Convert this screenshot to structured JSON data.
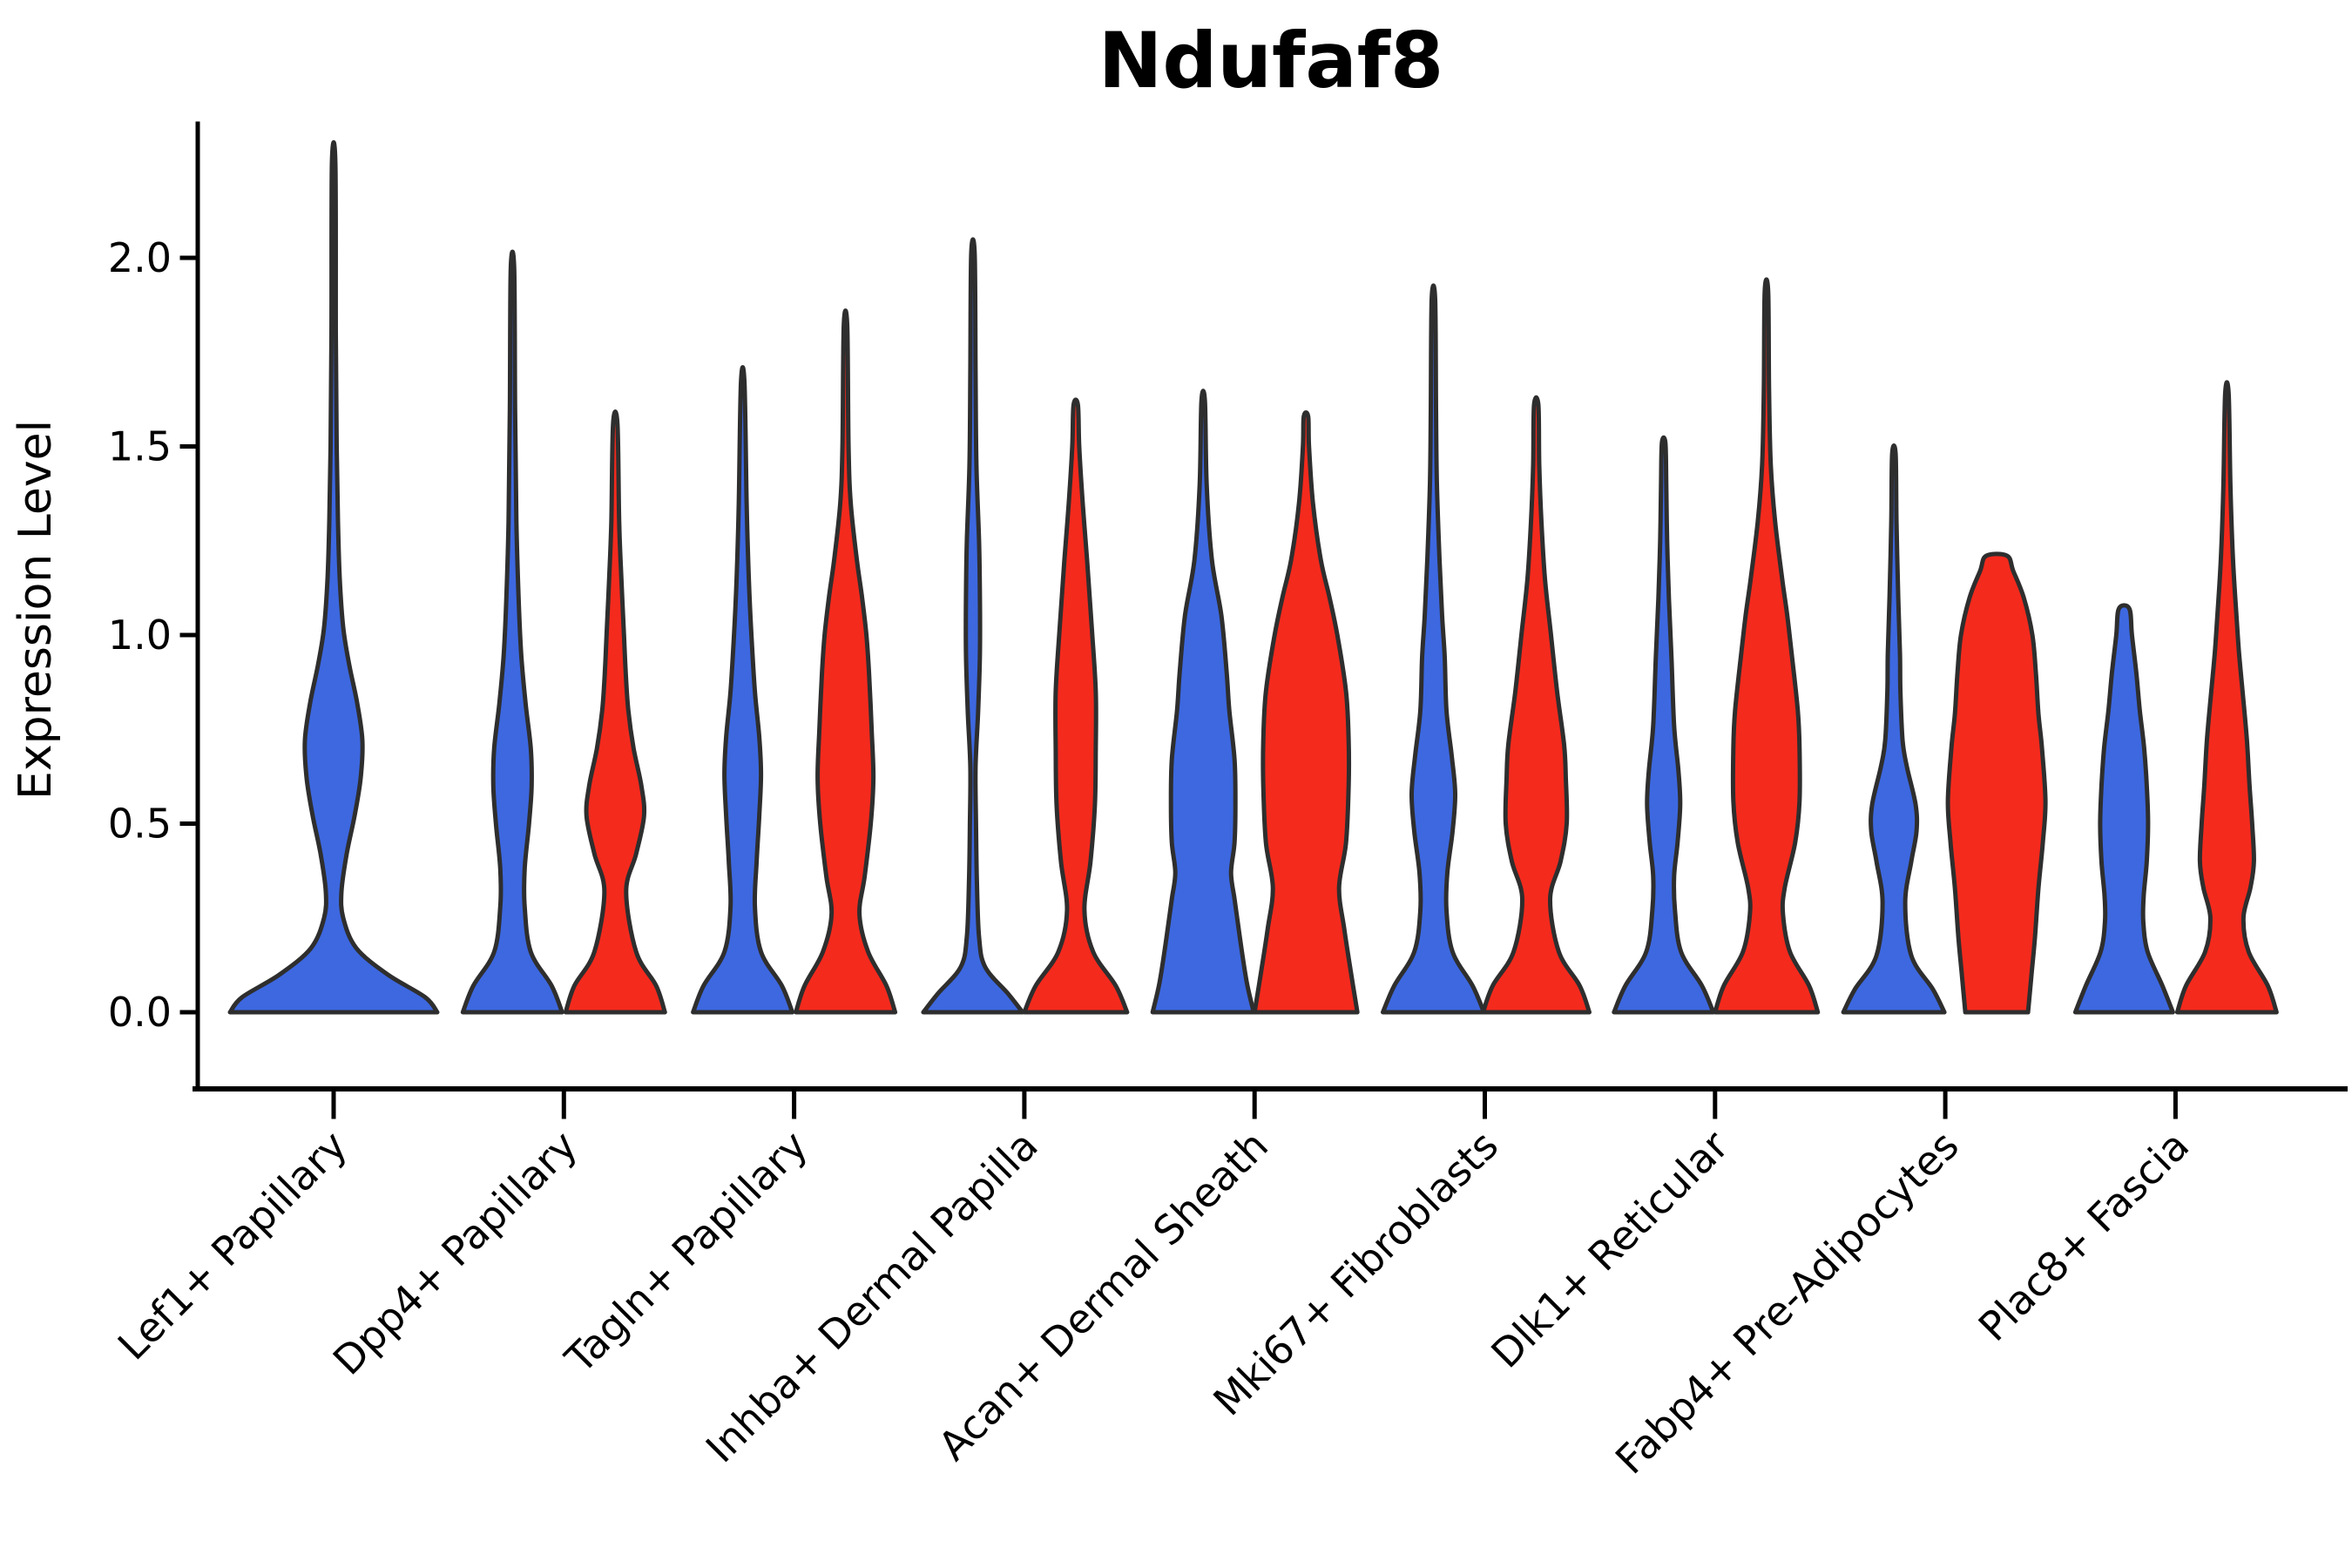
{
  "title": "Ndufaf8",
  "axes": {
    "y_label": "Expression Level",
    "y_tick_labels": [
      "0.0",
      "0.5",
      "1.0",
      "1.5",
      "2.0"
    ],
    "x_tick_rotation_deg": 45
  },
  "colors": {
    "blue": "#3D68E0",
    "red": "#F42A1D",
    "outline": "#2E2E2E",
    "axis": "#000000",
    "background": "#FFFFFF"
  },
  "chart_data": {
    "type": "violin",
    "title": "Ndufaf8",
    "xlabel": "",
    "ylabel": "Expression Level",
    "ylim": [
      -0.11,
      2.36
    ],
    "y_ticks": [
      0,
      0.5,
      1.0,
      1.5,
      2.0
    ],
    "grid": false,
    "legend_position": "none",
    "split_violins": true,
    "categories": [
      "Lef1+ Papillary",
      "Dpp4+ Papillary",
      "Tagln+ Papillary",
      "Inhba+ Dermal Papilla",
      "Acan+ Dermal Sheath",
      "Mki67+ Fibroblasts",
      "Dlk1+ Reticular",
      "Fabp4+ Pre-Adipocytes",
      "Plac8+ Fascia"
    ],
    "series": [
      {
        "name": "blue",
        "color": "#3D68E0"
      },
      {
        "name": "red",
        "color": "#F42A1D"
      }
    ],
    "notes": "Density profiles read from plot: profile entries are [expression_value, half_width_px at 2700x1800 scale]. Lef1+ Papillary shows a single full-width blue violin; every other category has a blue (left) and red (right) violin. Fabp4+ red and Plac8+ blue violins have truncated flat tops.",
    "violins": [
      {
        "category": "Lef1+ Papillary",
        "series": "blue",
        "single": true,
        "max": 2.25,
        "profile": [
          [
            0,
            119
          ],
          [
            0.04,
            105
          ],
          [
            0.1,
            62
          ],
          [
            0.17,
            26
          ],
          [
            0.25,
            11
          ],
          [
            0.32,
            9
          ],
          [
            0.42,
            15
          ],
          [
            0.52,
            24
          ],
          [
            0.62,
            31
          ],
          [
            0.72,
            33
          ],
          [
            0.82,
            27
          ],
          [
            0.92,
            18
          ],
          [
            1.02,
            11
          ],
          [
            1.15,
            7
          ],
          [
            1.3,
            5
          ],
          [
            1.5,
            3.5
          ],
          [
            1.8,
            2.5
          ],
          [
            2.25,
            2
          ]
        ]
      },
      {
        "category": "Dpp4+ Papillary",
        "series": "blue",
        "max": 1.97,
        "profile": [
          [
            0,
            57
          ],
          [
            0.07,
            45
          ],
          [
            0.16,
            21
          ],
          [
            0.28,
            14
          ],
          [
            0.38,
            14
          ],
          [
            0.5,
            19
          ],
          [
            0.6,
            22
          ],
          [
            0.7,
            21
          ],
          [
            0.82,
            15
          ],
          [
            0.95,
            10
          ],
          [
            1.1,
            7
          ],
          [
            1.3,
            4.5
          ],
          [
            1.6,
            3
          ],
          [
            1.97,
            2
          ]
        ]
      },
      {
        "category": "Dpp4+ Papillary",
        "series": "red",
        "max": 1.56,
        "profile": [
          [
            0,
            57
          ],
          [
            0.07,
            47
          ],
          [
            0.16,
            24
          ],
          [
            0.32,
            12.5
          ],
          [
            0.42,
            24
          ],
          [
            0.52,
            33
          ],
          [
            0.6,
            30
          ],
          [
            0.7,
            21
          ],
          [
            0.8,
            15
          ],
          [
            0.9,
            12
          ],
          [
            1.0,
            10
          ],
          [
            1.15,
            7
          ],
          [
            1.3,
            4.5
          ],
          [
            1.56,
            2.5
          ]
        ]
      },
      {
        "category": "Tagln+ Papillary",
        "series": "blue",
        "max": 1.67,
        "profile": [
          [
            0,
            57
          ],
          [
            0.07,
            45
          ],
          [
            0.16,
            21
          ],
          [
            0.28,
            14
          ],
          [
            0.4,
            16
          ],
          [
            0.52,
            19
          ],
          [
            0.63,
            21
          ],
          [
            0.73,
            19
          ],
          [
            0.85,
            14
          ],
          [
            1.0,
            10
          ],
          [
            1.15,
            7
          ],
          [
            1.35,
            4.5
          ],
          [
            1.67,
            2
          ]
        ]
      },
      {
        "category": "Tagln+ Papillary",
        "series": "red",
        "max": 1.82,
        "profile": [
          [
            0,
            57
          ],
          [
            0.07,
            47
          ],
          [
            0.16,
            26
          ],
          [
            0.26,
            16
          ],
          [
            0.36,
            22
          ],
          [
            0.5,
            29
          ],
          [
            0.62,
            32
          ],
          [
            0.75,
            30
          ],
          [
            0.9,
            27
          ],
          [
            1.0,
            24
          ],
          [
            1.1,
            19
          ],
          [
            1.2,
            13
          ],
          [
            1.35,
            6
          ],
          [
            1.5,
            3.5
          ],
          [
            1.82,
            2
          ]
        ]
      },
      {
        "category": "Inhba+ Dermal Papilla",
        "series": "blue",
        "max": 2.01,
        "profile": [
          [
            0,
            57
          ],
          [
            0.05,
            40
          ],
          [
            0.12,
            14
          ],
          [
            0.2,
            7
          ],
          [
            0.35,
            4.5
          ],
          [
            0.5,
            3.5
          ],
          [
            0.65,
            3
          ],
          [
            0.8,
            6
          ],
          [
            0.95,
            8
          ],
          [
            1.1,
            8
          ],
          [
            1.25,
            7
          ],
          [
            1.45,
            4
          ],
          [
            1.7,
            3
          ],
          [
            2.01,
            2
          ]
        ]
      },
      {
        "category": "Inhba+ Dermal Papilla",
        "series": "red",
        "max": 1.61,
        "profile": [
          [
            0,
            59
          ],
          [
            0.07,
            46
          ],
          [
            0.16,
            20
          ],
          [
            0.27,
            10
          ],
          [
            0.4,
            17
          ],
          [
            0.55,
            22
          ],
          [
            0.7,
            23
          ],
          [
            0.85,
            23
          ],
          [
            1.0,
            19
          ],
          [
            1.1,
            16
          ],
          [
            1.2,
            13
          ],
          [
            1.35,
            8
          ],
          [
            1.5,
            4
          ],
          [
            1.61,
            2.5
          ]
        ]
      },
      {
        "category": "Acan+ Dermal Sheath",
        "series": "blue",
        "max": 1.62,
        "profile": [
          [
            0,
            58
          ],
          [
            0.08,
            50
          ],
          [
            0.2,
            42
          ],
          [
            0.3,
            36
          ],
          [
            0.37,
            32
          ],
          [
            0.45,
            36
          ],
          [
            0.55,
            37
          ],
          [
            0.67,
            36
          ],
          [
            0.8,
            30
          ],
          [
            0.9,
            27
          ],
          [
            1.05,
            21
          ],
          [
            1.2,
            10
          ],
          [
            1.4,
            4
          ],
          [
            1.62,
            2
          ]
        ]
      },
      {
        "category": "Acan+ Dermal Sheath",
        "series": "red",
        "max": 1.58,
        "profile": [
          [
            0,
            59
          ],
          [
            0.1,
            52
          ],
          [
            0.22,
            44
          ],
          [
            0.33,
            38
          ],
          [
            0.45,
            46
          ],
          [
            0.6,
            49
          ],
          [
            0.72,
            49
          ],
          [
            0.85,
            46
          ],
          [
            1.0,
            36
          ],
          [
            1.1,
            27
          ],
          [
            1.2,
            17
          ],
          [
            1.35,
            8
          ],
          [
            1.5,
            3.5
          ],
          [
            1.58,
            2.5
          ]
        ]
      },
      {
        "category": "Mki67+ Fibroblasts",
        "series": "blue",
        "max": 1.89,
        "profile": [
          [
            0,
            58
          ],
          [
            0.07,
            45
          ],
          [
            0.16,
            22
          ],
          [
            0.27,
            15
          ],
          [
            0.37,
            16
          ],
          [
            0.48,
            22
          ],
          [
            0.58,
            25
          ],
          [
            0.68,
            21
          ],
          [
            0.8,
            15
          ],
          [
            0.94,
            13
          ],
          [
            1.05,
            10
          ],
          [
            1.2,
            7
          ],
          [
            1.4,
            4
          ],
          [
            1.6,
            3
          ],
          [
            1.89,
            2
          ]
        ]
      },
      {
        "category": "Mki67+ Fibroblasts",
        "series": "red",
        "max": 1.61,
        "profile": [
          [
            0,
            61
          ],
          [
            0.07,
            50
          ],
          [
            0.16,
            26
          ],
          [
            0.3,
            16
          ],
          [
            0.4,
            28
          ],
          [
            0.5,
            35
          ],
          [
            0.62,
            34
          ],
          [
            0.71,
            32
          ],
          [
            0.85,
            24
          ],
          [
            1.0,
            17
          ],
          [
            1.15,
            10
          ],
          [
            1.3,
            6
          ],
          [
            1.45,
            3.5
          ],
          [
            1.61,
            2.5
          ]
        ]
      },
      {
        "category": "Dlk1+ Reticular",
        "series": "blue",
        "max": 1.51,
        "profile": [
          [
            0,
            57
          ],
          [
            0.07,
            44
          ],
          [
            0.16,
            20
          ],
          [
            0.27,
            13
          ],
          [
            0.36,
            12
          ],
          [
            0.45,
            16
          ],
          [
            0.55,
            19
          ],
          [
            0.64,
            17
          ],
          [
            0.76,
            12
          ],
          [
            0.94,
            9
          ],
          [
            1.1,
            6
          ],
          [
            1.25,
            4
          ],
          [
            1.4,
            3
          ],
          [
            1.51,
            2
          ]
        ]
      },
      {
        "category": "Dlk1+ Reticular",
        "series": "red",
        "max": 1.91,
        "profile": [
          [
            0,
            59
          ],
          [
            0.07,
            49
          ],
          [
            0.16,
            27
          ],
          [
            0.26,
            19
          ],
          [
            0.33,
            21
          ],
          [
            0.45,
            33
          ],
          [
            0.56,
            38
          ],
          [
            0.7,
            38
          ],
          [
            0.8,
            36
          ],
          [
            0.95,
            29
          ],
          [
            1.05,
            24
          ],
          [
            1.15,
            18
          ],
          [
            1.3,
            10
          ],
          [
            1.45,
            5
          ],
          [
            1.65,
            3
          ],
          [
            1.91,
            2
          ]
        ]
      },
      {
        "category": "Fabp4+ Pre-Adipocytes",
        "series": "blue",
        "max": 1.48,
        "profile": [
          [
            0,
            58
          ],
          [
            0.06,
            45
          ],
          [
            0.15,
            20
          ],
          [
            0.29,
            13
          ],
          [
            0.4,
            20
          ],
          [
            0.48,
            26
          ],
          [
            0.55,
            25
          ],
          [
            0.65,
            15
          ],
          [
            0.72,
            10
          ],
          [
            0.85,
            7.5
          ],
          [
            0.95,
            7
          ],
          [
            1.1,
            5
          ],
          [
            1.3,
            3
          ],
          [
            1.48,
            2
          ]
        ]
      },
      {
        "category": "Fabp4+ Pre-Adipocytes",
        "series": "red",
        "max": 1.21,
        "flat_top": true,
        "profile": [
          [
            0,
            36
          ],
          [
            0.1,
            40
          ],
          [
            0.2,
            44
          ],
          [
            0.33,
            48
          ],
          [
            0.45,
            53
          ],
          [
            0.56,
            56
          ],
          [
            0.7,
            52
          ],
          [
            0.79,
            48
          ],
          [
            0.9,
            45
          ],
          [
            1.0,
            41
          ],
          [
            1.1,
            31
          ],
          [
            1.17,
            19
          ],
          [
            1.21,
            12
          ]
        ]
      },
      {
        "category": "Plac8+ Fascia",
        "series": "blue",
        "max": 1.07,
        "flat_top": true,
        "profile": [
          [
            0,
            56
          ],
          [
            0.07,
            44
          ],
          [
            0.16,
            27
          ],
          [
            0.24,
            22
          ],
          [
            0.31,
            22.5
          ],
          [
            0.4,
            26
          ],
          [
            0.5,
            27.5
          ],
          [
            0.6,
            26
          ],
          [
            0.7,
            23
          ],
          [
            0.8,
            18
          ],
          [
            0.9,
            14
          ],
          [
            1.0,
            9
          ],
          [
            1.07,
            6
          ]
        ]
      },
      {
        "category": "Plac8+ Fascia",
        "series": "red",
        "max": 1.64,
        "profile": [
          [
            0,
            57
          ],
          [
            0.07,
            47
          ],
          [
            0.16,
            25
          ],
          [
            0.25,
            19
          ],
          [
            0.33,
            27
          ],
          [
            0.4,
            31
          ],
          [
            0.5,
            29
          ],
          [
            0.6,
            26
          ],
          [
            0.72,
            23
          ],
          [
            0.85,
            18
          ],
          [
            0.95,
            14
          ],
          [
            1.05,
            11
          ],
          [
            1.2,
            7
          ],
          [
            1.4,
            4
          ],
          [
            1.64,
            2
          ]
        ]
      }
    ]
  }
}
